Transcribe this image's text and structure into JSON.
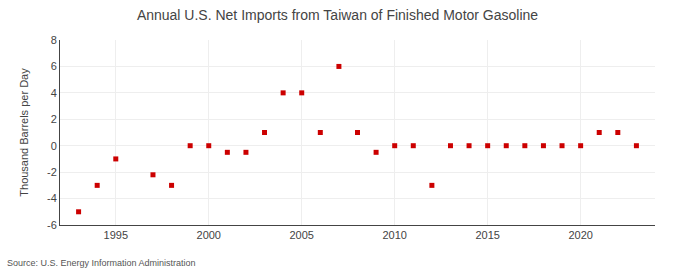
{
  "chart_data": {
    "type": "scatter",
    "title": "Annual U.S. Net Imports from Taiwan of Finished Motor Gasoline",
    "ylabel": "Thousand Barrels per Day",
    "source": "Source: U.S. Energy Information Administration",
    "x": [
      1993,
      1994,
      1995,
      1997,
      1998,
      1999,
      2000,
      2001,
      2002,
      2003,
      2004,
      2005,
      2006,
      2007,
      2008,
      2009,
      2010,
      2011,
      2012,
      2013,
      2014,
      2015,
      2016,
      2017,
      2018,
      2019,
      2020,
      2021,
      2022,
      2023
    ],
    "values": [
      -5.0,
      -3.0,
      -1.0,
      -2.2,
      -3.0,
      0.0,
      0.0,
      -0.5,
      -0.5,
      1.0,
      4.0,
      4.0,
      1.0,
      6.0,
      1.0,
      -0.5,
      0.0,
      0.0,
      -3.0,
      0.0,
      0.0,
      0.0,
      0.0,
      0.0,
      0.0,
      0.0,
      0.0,
      1.0,
      1.0,
      0.0
    ],
    "color": "#cc0000",
    "marker": "square",
    "xlim": [
      1992,
      2024
    ],
    "xticks": [
      1995,
      2000,
      2005,
      2010,
      2015,
      2020
    ],
    "ylim": [
      -6,
      8
    ],
    "yticks": [
      -6,
      -4,
      -2,
      0,
      2,
      4,
      6,
      8
    ],
    "grid": true
  }
}
